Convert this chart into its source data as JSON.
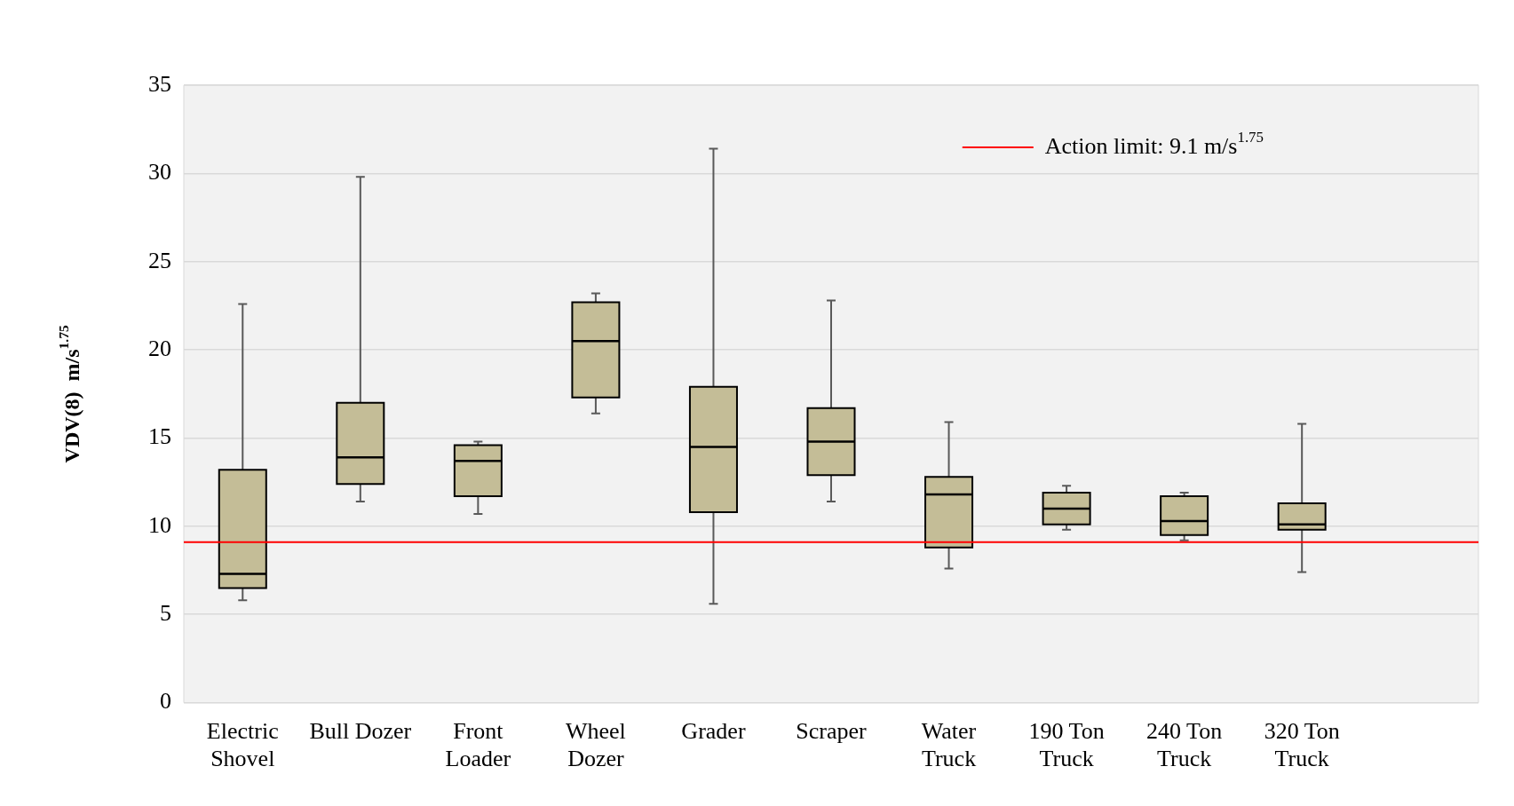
{
  "chart_data": {
    "type": "box",
    "ylabel": "VDV(8)  m/s$^{1.75}$",
    "categories": [
      "Electric Shovel",
      "Bull Dozer",
      "Front Loader",
      "Wheel Dozer",
      "Grader",
      "Scraper",
      "Water Truck",
      "190 Ton Truck",
      "240 Ton Truck",
      "320 Ton Truck",
      null
    ],
    "boxes": [
      {
        "low": 5.8,
        "q1": 6.5,
        "median": 7.3,
        "q3": 13.2,
        "high": 22.6
      },
      {
        "low": 11.4,
        "q1": 12.4,
        "median": 13.9,
        "q3": 17.0,
        "high": 29.8
      },
      {
        "low": 10.7,
        "q1": 11.7,
        "median": 13.7,
        "q3": 14.6,
        "high": 14.8
      },
      {
        "low": 16.4,
        "q1": 17.3,
        "median": 20.5,
        "q3": 22.7,
        "high": 23.2
      },
      {
        "low": 5.6,
        "q1": 10.8,
        "median": 14.5,
        "q3": 17.9,
        "high": 31.4
      },
      {
        "low": 11.4,
        "q1": 12.9,
        "median": 14.8,
        "q3": 16.7,
        "high": 22.8
      },
      {
        "low": 7.6,
        "q1": 8.8,
        "median": 11.8,
        "q3": 12.8,
        "high": 15.9
      },
      {
        "low": 9.8,
        "q1": 10.1,
        "median": 11.0,
        "q3": 11.9,
        "high": 12.3
      },
      {
        "low": 9.2,
        "q1": 9.5,
        "median": 10.3,
        "q3": 11.7,
        "high": 11.9
      },
      {
        "low": 7.4,
        "q1": 9.8,
        "median": 10.1,
        "q3": 11.3,
        "high": 15.8
      },
      null
    ],
    "color": "#c4bd97",
    "ylim": [
      0,
      35
    ],
    "yticks": [
      0,
      5,
      10,
      15,
      20,
      25,
      30,
      35
    ],
    "grid": "y",
    "ref_lines": [
      {
        "axis": "y",
        "value": 9.1,
        "label": "Action limit: 9.1 m/s$^{1.75}$",
        "color": "#ff0000"
      }
    ],
    "legend": "top right"
  }
}
